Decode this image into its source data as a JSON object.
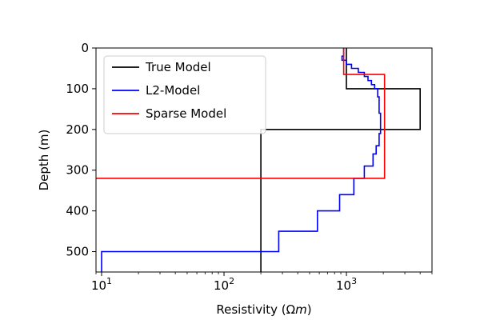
{
  "chart_data": {
    "type": "line",
    "title": "",
    "xlabel": "Resistivity (Ωm)",
    "ylabel": "Depth (m)",
    "x_scale": "log",
    "xlim": [
      9,
      5000
    ],
    "ylim": [
      550,
      0
    ],
    "x_ticks": [
      {
        "value": 10,
        "base": "10",
        "exp": "1"
      },
      {
        "value": 100,
        "base": "10",
        "exp": "2"
      },
      {
        "value": 1000,
        "base": "10",
        "exp": "3"
      }
    ],
    "y_ticks": [
      0,
      100,
      200,
      300,
      400,
      500
    ],
    "legend_position": "top-left",
    "series": [
      {
        "name": "True Model",
        "color": "#000000",
        "points": [
          [
            1000,
            0
          ],
          [
            1000,
            100
          ],
          [
            4000,
            100
          ],
          [
            4000,
            200
          ],
          [
            200,
            200
          ],
          [
            200,
            550
          ]
        ]
      },
      {
        "name": "L2-Model",
        "color": "#0000ff",
        "points": [
          [
            950,
            0
          ],
          [
            950,
            20
          ],
          [
            920,
            20
          ],
          [
            920,
            30
          ],
          [
            1000,
            30
          ],
          [
            1000,
            40
          ],
          [
            1100,
            40
          ],
          [
            1100,
            50
          ],
          [
            1250,
            50
          ],
          [
            1250,
            60
          ],
          [
            1400,
            60
          ],
          [
            1400,
            70
          ],
          [
            1500,
            70
          ],
          [
            1500,
            80
          ],
          [
            1600,
            80
          ],
          [
            1600,
            90
          ],
          [
            1700,
            90
          ],
          [
            1700,
            100
          ],
          [
            1800,
            100
          ],
          [
            1800,
            120
          ],
          [
            1850,
            120
          ],
          [
            1850,
            160
          ],
          [
            1900,
            160
          ],
          [
            1900,
            210
          ],
          [
            1850,
            210
          ],
          [
            1850,
            240
          ],
          [
            1750,
            240
          ],
          [
            1750,
            260
          ],
          [
            1650,
            260
          ],
          [
            1650,
            290
          ],
          [
            1400,
            290
          ],
          [
            1400,
            320
          ],
          [
            1150,
            320
          ],
          [
            1150,
            360
          ],
          [
            880,
            360
          ],
          [
            880,
            400
          ],
          [
            580,
            400
          ],
          [
            580,
            450
          ],
          [
            280,
            450
          ],
          [
            280,
            500
          ],
          [
            10,
            500
          ],
          [
            10,
            550
          ]
        ]
      },
      {
        "name": "Sparse Model",
        "color": "#ff0000",
        "points": [
          [
            950,
            0
          ],
          [
            950,
            65
          ],
          [
            2050,
            65
          ],
          [
            2050,
            320
          ],
          [
            8,
            320
          ]
        ]
      }
    ]
  }
}
